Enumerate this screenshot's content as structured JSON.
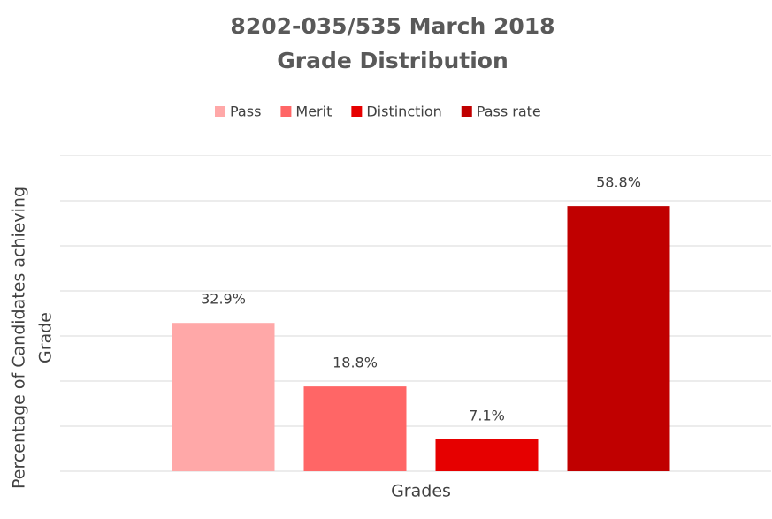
{
  "chart_data": {
    "type": "bar",
    "title": [
      "8202-035/535 March 2018",
      "Grade Distribution"
    ],
    "xlabel": "Grades",
    "ylabel": [
      "Percentage of Candidates achieving",
      "Grade"
    ],
    "categories": [
      null
    ],
    "series": [
      {
        "name": "Pass",
        "color": "#ffa8a8",
        "values": [
          32.9
        ],
        "value_labels": [
          "32.9%"
        ]
      },
      {
        "name": "Merit",
        "color": "#ff6666",
        "values": [
          18.8
        ],
        "value_labels": [
          "18.8%"
        ]
      },
      {
        "name": "Distinction",
        "color": "#e60000",
        "values": [
          7.1
        ],
        "value_labels": [
          "7.1%"
        ]
      },
      {
        "name": "Pass rate",
        "color": "#c00000",
        "values": [
          58.8
        ],
        "value_labels": [
          "58.8%"
        ]
      }
    ],
    "ylim": [
      0,
      70
    ],
    "yticks": [
      0,
      10,
      20,
      30,
      40,
      50,
      60,
      70
    ],
    "grid": true,
    "legend": "top"
  }
}
